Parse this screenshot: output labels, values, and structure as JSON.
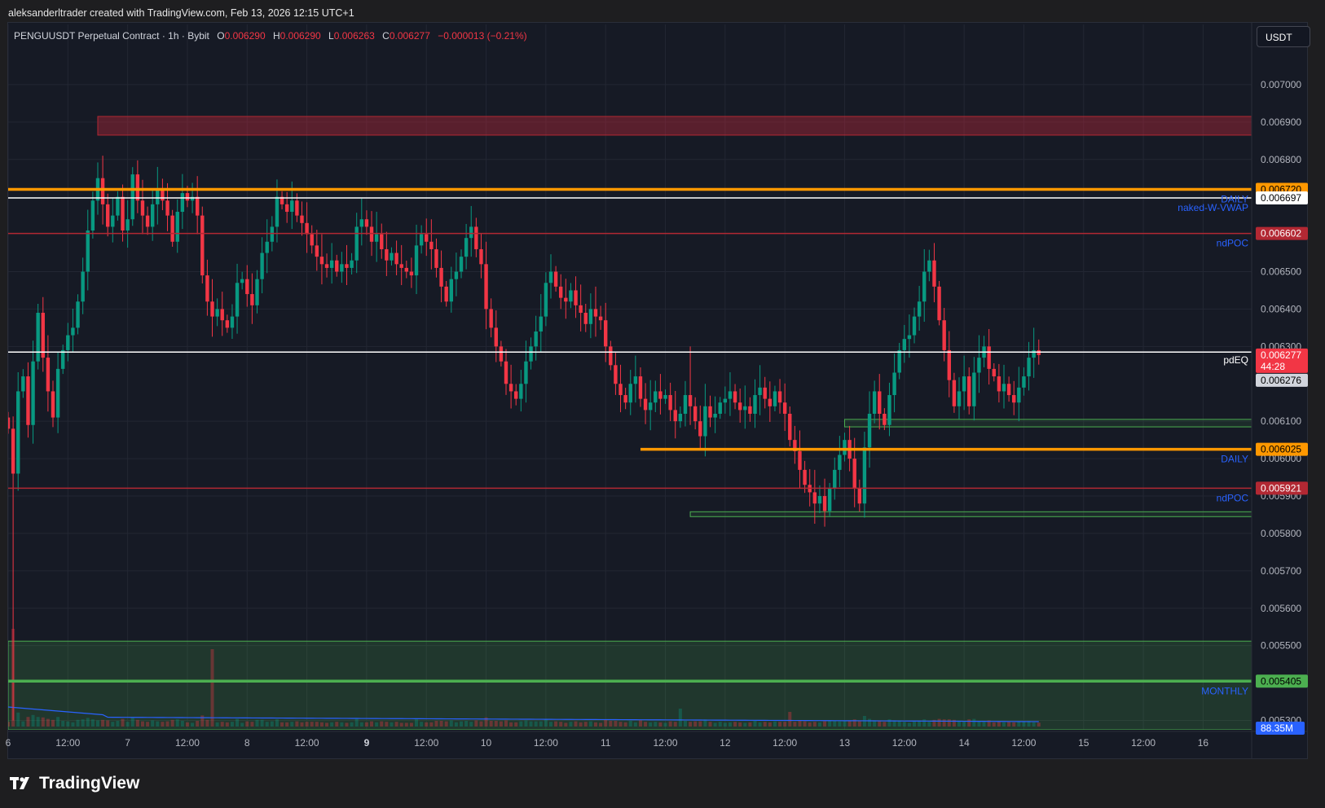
{
  "header": {
    "credit": "aleksanderltrader created with TradingView.com, Feb 13, 2026 12:15 UTC+1"
  },
  "legend": {
    "symbol": "PENGUUSDT Perpetual Contract · 1h · Bybit",
    "o_label": "O",
    "o_value": "0.006290",
    "h_label": "H",
    "h_value": "0.006290",
    "l_label": "L",
    "l_value": "0.006263",
    "c_label": "C",
    "c_value": "0.006277",
    "change": "−0.000013 (−0.21%)"
  },
  "currency_button": "USDT",
  "footer": {
    "brand": "TradingView"
  },
  "colors": {
    "background": "#161a25",
    "up": "#089981",
    "down": "#f23645",
    "orange": "#ff9800",
    "red_line": "#b22833",
    "green_line": "#4caf50",
    "label_blue": "#2962ff",
    "vwap": "#ffffff"
  },
  "chart_data": {
    "type": "candlestick",
    "ylim": [
      0.005275,
      0.0071
    ],
    "y_ticks": [
      "0.007000",
      "0.006900",
      "0.006800",
      "0.006500",
      "0.006400",
      "0.006300",
      "0.006100",
      "0.006000",
      "0.005900",
      "0.005800",
      "0.005700",
      "0.005600",
      "0.005500",
      "0.005300"
    ],
    "x_ticks": [
      {
        "label": "6",
        "t": 0,
        "bold": false
      },
      {
        "label": "12:00",
        "t": 12,
        "bold": false
      },
      {
        "label": "7",
        "t": 24,
        "bold": false
      },
      {
        "label": "12:00",
        "t": 36,
        "bold": false
      },
      {
        "label": "8",
        "t": 48,
        "bold": false
      },
      {
        "label": "12:00",
        "t": 60,
        "bold": false
      },
      {
        "label": "9",
        "t": 72,
        "bold": true
      },
      {
        "label": "12:00",
        "t": 84,
        "bold": false
      },
      {
        "label": "10",
        "t": 96,
        "bold": false
      },
      {
        "label": "12:00",
        "t": 108,
        "bold": false
      },
      {
        "label": "11",
        "t": 120,
        "bold": false
      },
      {
        "label": "12:00",
        "t": 132,
        "bold": false
      },
      {
        "label": "12",
        "t": 144,
        "bold": false
      },
      {
        "label": "12:00",
        "t": 156,
        "bold": false
      },
      {
        "label": "13",
        "t": 168,
        "bold": false
      },
      {
        "label": "12:00",
        "t": 180,
        "bold": false
      },
      {
        "label": "14",
        "t": 192,
        "bold": false
      },
      {
        "label": "12:00",
        "t": 204,
        "bold": false
      },
      {
        "label": "15",
        "t": 216,
        "bold": false
      },
      {
        "label": "12:00",
        "t": 228,
        "bold": false
      },
      {
        "label": "16",
        "t": 240,
        "bold": false
      }
    ],
    "closes": [
      0.00608,
      0.00596,
      0.00618,
      0.00622,
      0.00609,
      0.00626,
      0.00639,
      0.00627,
      0.00618,
      0.00611,
      0.00624,
      0.00629,
      0.00633,
      0.00635,
      0.00642,
      0.0065,
      0.00661,
      0.00669,
      0.00675,
      0.00668,
      0.00662,
      0.00665,
      0.0067,
      0.00661,
      0.00664,
      0.00676,
      0.00669,
      0.00665,
      0.00662,
      0.00668,
      0.00672,
      0.00669,
      0.00665,
      0.00658,
      0.00666,
      0.00671,
      0.00669,
      0.0067,
      0.00665,
      0.00649,
      0.00642,
      0.00638,
      0.0064,
      0.00637,
      0.00635,
      0.00638,
      0.00647,
      0.00648,
      0.00644,
      0.00641,
      0.00648,
      0.00655,
      0.00658,
      0.00662,
      0.0067,
      0.00668,
      0.00666,
      0.00669,
      0.00665,
      0.00663,
      0.0066,
      0.00657,
      0.00654,
      0.00652,
      0.00651,
      0.00653,
      0.0065,
      0.00652,
      0.00651,
      0.00653,
      0.00662,
      0.00664,
      0.00662,
      0.00658,
      0.0066,
      0.00656,
      0.00653,
      0.00655,
      0.00652,
      0.00651,
      0.0065,
      0.00649,
      0.00657,
      0.0066,
      0.00658,
      0.00656,
      0.00651,
      0.00646,
      0.00642,
      0.00648,
      0.0065,
      0.00654,
      0.00659,
      0.00662,
      0.00656,
      0.00652,
      0.0064,
      0.00635,
      0.0063,
      0.00626,
      0.0062,
      0.00618,
      0.00616,
      0.0062,
      0.00626,
      0.0063,
      0.00634,
      0.00638,
      0.00647,
      0.0065,
      0.00646,
      0.00643,
      0.00642,
      0.00645,
      0.00641,
      0.00639,
      0.00636,
      0.0064,
      0.00638,
      0.00637,
      0.0063,
      0.00625,
      0.0062,
      0.00617,
      0.00615,
      0.0062,
      0.00622,
      0.00616,
      0.00613,
      0.00615,
      0.00618,
      0.00616,
      0.00617,
      0.00613,
      0.0061,
      0.00612,
      0.00617,
      0.00614,
      0.0061,
      0.00606,
      0.00614,
      0.00611,
      0.00612,
      0.00615,
      0.00616,
      0.00618,
      0.00615,
      0.00613,
      0.00614,
      0.00612,
      0.00617,
      0.00619,
      0.00616,
      0.00614,
      0.00618,
      0.00615,
      0.00612,
      0.00605,
      0.00602,
      0.00597,
      0.00593,
      0.00591,
      0.00588,
      0.0059,
      0.00586,
      0.00592,
      0.00597,
      0.00601,
      0.00605,
      0.006,
      0.00592,
      0.00588,
      0.00603,
      0.00612,
      0.00618,
      0.00612,
      0.00609,
      0.00617,
      0.00623,
      0.00629,
      0.00632,
      0.00633,
      0.00638,
      0.00642,
      0.0065,
      0.00653,
      0.00646,
      0.00637,
      0.00629,
      0.00621,
      0.00614,
      0.00618,
      0.00622,
      0.00614,
      0.00623,
      0.00627,
      0.0063,
      0.00624,
      0.00622,
      0.00618,
      0.0062,
      0.00617,
      0.00615,
      0.00619,
      0.00622,
      0.00627,
      0.00629,
      0.006277
    ],
    "levels": [
      {
        "price": 0.00672,
        "color": "orange",
        "width": 3.5,
        "start": 0,
        "tag": "0.006720",
        "tag_bg": "#ff9800",
        "tag_fg": "#000000",
        "label": "DAILY",
        "label_color": "#2962ff"
      },
      {
        "price": 0.006697,
        "color": "vwap",
        "width": 1.5,
        "start": -3,
        "tag": "0.006697",
        "tag_bg": "#ffffff",
        "tag_fg": "#000000",
        "label": "naked-W-VWAP",
        "label_color": "#2962ff"
      },
      {
        "price": 0.006602,
        "color": "red_line",
        "width": 1.5,
        "start": -3,
        "tag": "0.006602",
        "tag_bg": "#b22833",
        "tag_fg": "#ffffff",
        "label": "ndPOC",
        "label_color": "#2962ff"
      },
      {
        "price": 0.006285,
        "color": "vwap",
        "width": 1.5,
        "start": -3,
        "tag": "",
        "tag_bg": "",
        "tag_fg": "",
        "label": "pdEQ",
        "label_color": "#ffffff"
      },
      {
        "price": 0.006025,
        "color": "orange",
        "width": 3.5,
        "start": 127,
        "tag": "0.006025",
        "tag_bg": "#ff9800",
        "tag_fg": "#000000",
        "label": "DAILY",
        "label_color": "#2962ff"
      },
      {
        "price": 0.005921,
        "color": "red_line",
        "width": 1.5,
        "start": -3,
        "tag": "0.005921",
        "tag_bg": "#b22833",
        "tag_fg": "#ffffff",
        "label": "ndPOC",
        "label_color": "#2962ff"
      },
      {
        "price": 0.005405,
        "color": "green_line",
        "width": 3.5,
        "start": -3,
        "tag": "0.005405",
        "tag_bg": "#4caf50",
        "tag_fg": "#000000",
        "label": "MONTHLY",
        "label_color": "#2962ff"
      }
    ],
    "zones": [
      {
        "top": 0.006915,
        "bottom": 0.006865,
        "start": 18,
        "fill": "rgba(200,40,60,0.38)",
        "stroke": "#b22833"
      },
      {
        "top": 0.006105,
        "bottom": 0.006085,
        "start": 168,
        "fill": "rgba(76,175,80,0.12)",
        "stroke": "#4caf50"
      },
      {
        "top": 0.005858,
        "bottom": 0.005845,
        "start": 137,
        "fill": "rgba(76,175,80,0.12)",
        "stroke": "#4caf50"
      },
      {
        "top": 0.005512,
        "bottom": 0.005275,
        "start": -3,
        "fill": "rgba(76,175,80,0.20)",
        "stroke": "#4caf50"
      }
    ],
    "price_tag": {
      "price": "0.006277",
      "countdown": "44:28",
      "value": 0.006277
    },
    "bid_tag": {
      "price": "0.006276",
      "value": 0.006276
    },
    "volume_tag": "88.35M"
  }
}
